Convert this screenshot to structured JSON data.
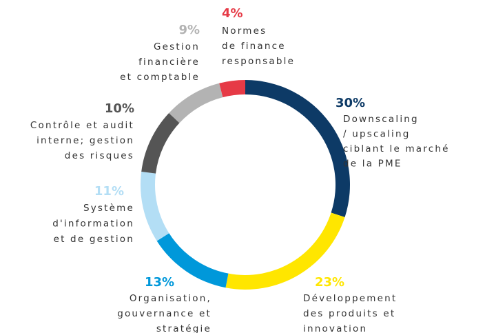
{
  "chart_data": {
    "type": "donut",
    "categories": [
      [
        "Downscaling",
        "/ upscaling",
        "ciblant le marché",
        "de la PME"
      ],
      [
        "Développement",
        "des produits et",
        "innovation"
      ],
      [
        "Organisation,",
        "gouvernance et",
        "stratégie"
      ],
      [
        "Système",
        "d'information",
        "et de gestion"
      ],
      [
        "Contrôle et audit",
        "interne; gestion",
        "des risques"
      ],
      [
        "Gestion",
        "financière",
        "et comptable"
      ],
      [
        "Normes",
        "de finance",
        "responsable"
      ]
    ],
    "values": [
      30,
      23,
      13,
      11,
      10,
      9,
      4
    ],
    "value_labels": [
      "30%",
      "23%",
      "13%",
      "11%",
      "10%",
      "9%",
      "4%"
    ],
    "colors": [
      "#0d3a66",
      "#ffe600",
      "#0098da",
      "#b3def5",
      "#555555",
      "#b3b3b3",
      "#e63a46"
    ]
  }
}
